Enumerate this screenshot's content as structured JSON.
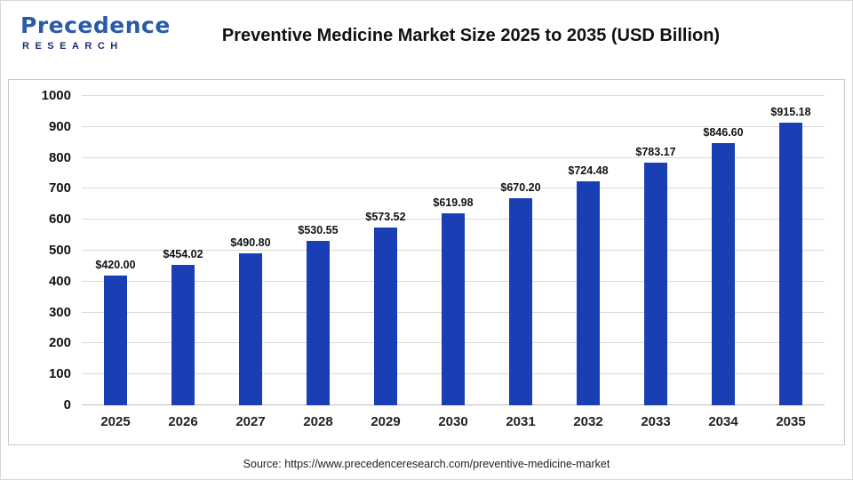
{
  "header": {
    "logo_main": "Precedence",
    "logo_sub": "RESEARCH",
    "title": "Preventive Medicine Market Size 2025 to 2035 (USD Billion)"
  },
  "chart_data": {
    "type": "bar",
    "title": "Preventive Medicine Market Size 2025 to 2035 (USD Billion)",
    "categories": [
      "2025",
      "2026",
      "2027",
      "2028",
      "2029",
      "2030",
      "2031",
      "2032",
      "2033",
      "2034",
      "2035"
    ],
    "values": [
      420.0,
      454.02,
      490.8,
      530.55,
      573.52,
      619.98,
      670.2,
      724.48,
      783.17,
      846.6,
      915.18
    ],
    "value_labels": [
      "$420.00",
      "$454.02",
      "$490.80",
      "$530.55",
      "$573.52",
      "$619.98",
      "$670.20",
      "$724.48",
      "$783.17",
      "$846.60",
      "$915.18"
    ],
    "xlabel": "",
    "ylabel": "",
    "ylim": [
      0,
      1000
    ],
    "yticks": [
      0,
      100,
      200,
      300,
      400,
      500,
      600,
      700,
      800,
      900,
      1000
    ],
    "bar_color": "#1a3fb5",
    "grid": true,
    "legend": "none"
  },
  "footer": {
    "source": "Source: https://www.precedenceresearch.com/preventive-medicine-market"
  }
}
